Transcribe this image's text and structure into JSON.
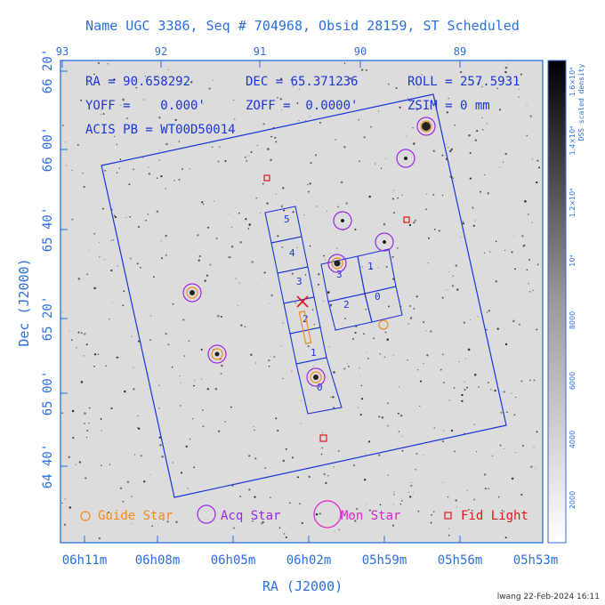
{
  "header": {
    "title": "Name UGC 3386, Seq # 704968, Obsid 28159, ST Scheduled"
  },
  "params": {
    "ra": "RA = 90.658292",
    "dec": "DEC = 65.371236",
    "roll": "ROLL = 257.5931",
    "yoff": "YOFF =    0.000'",
    "zoff": "ZOFF =  0.0000'",
    "zsim": "ZSIM = 0 mm",
    "acis_pb": "ACIS PB = WT00D50014"
  },
  "axes": {
    "xlabel": "RA (J2000)",
    "ylabel": "Dec (J2000)",
    "bottom_ticks": [
      "06h11m",
      "06h08m",
      "06h05m",
      "06h02m",
      "05h59m",
      "05h56m",
      "05h53m"
    ],
    "top_ticks": [
      "93",
      "92",
      "91",
      "90",
      "89"
    ],
    "left_ticks": [
      "64 40'",
      "65 00'",
      "65 20'",
      "65 40'",
      "66 00'",
      "66 20'"
    ],
    "colorbar_title": "DSS scaled density",
    "colorbar_ticks": [
      "2000",
      "4000",
      "6000",
      "8000",
      "10⁴",
      "1.2×10⁴",
      "1.4×10⁴",
      "1.6×10⁴"
    ]
  },
  "chips": {
    "left_column": [
      "5",
      "4",
      "3",
      "2",
      "1",
      "0"
    ],
    "right_block": [
      "3",
      "1",
      "2",
      "0"
    ]
  },
  "legend": {
    "guide_star": "Guide Star",
    "acq_star": "Acq Star",
    "mon_star": "Mon Star",
    "fid_light": "Fid Light"
  },
  "footer": {
    "stamp": "lwang 22-Feb-2024 16:11"
  },
  "colors": {
    "outline_blue": "#1a35d8",
    "guide_orange": "#f08c1e",
    "acq_purple": "#9a28e0",
    "mon_magenta": "#e020d0",
    "fid_red": "#e01818",
    "axis_blue": "#2a6fe0"
  }
}
